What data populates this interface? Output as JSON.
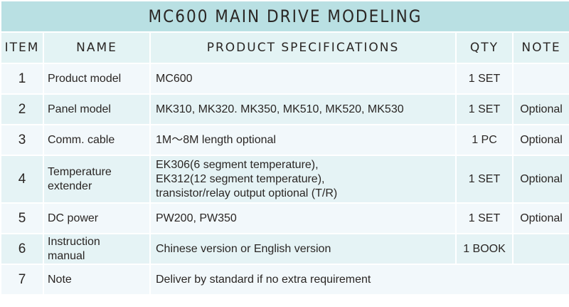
{
  "title": "MC600 MAIN DRIVE MODELING",
  "headers": {
    "item": "ITEM",
    "name": "NAME",
    "spec": "PRODUCT SPECIFICATIONS",
    "qty": "QTY",
    "note": "NOTE"
  },
  "rows": [
    {
      "item": "1",
      "name": "Product model",
      "spec": "MC600",
      "qty": "1 SET",
      "note": ""
    },
    {
      "item": "2",
      "name": "Panel model",
      "spec": "MK310, MK320. MK350, MK510, MK520, MK530",
      "qty": "1 SET",
      "note": "Optional"
    },
    {
      "item": "3",
      "name": "Comm. cable",
      "spec": "1M～8M length optional",
      "qty": "1 PC",
      "note": "Optional"
    },
    {
      "item": "4",
      "name_lines": [
        "Temperature",
        "extender"
      ],
      "spec_lines": [
        "EK306(6 segment temperature),",
        "EK312(12 segment temperature),",
        "transistor/relay output optional (T/R)"
      ],
      "qty": "1 SET",
      "note": "Optional"
    },
    {
      "item": "5",
      "name": "DC power",
      "spec": "PW200, PW350",
      "qty": "1 SET",
      "note": "Optional"
    },
    {
      "item": "6",
      "name_lines": [
        "Instruction",
        "manual"
      ],
      "spec": "Chinese version or English version",
      "qty": "1 BOOK",
      "note": ""
    },
    {
      "item": "7",
      "name": "Note",
      "spec": "Deliver by standard if no extra requirement"
    }
  ]
}
